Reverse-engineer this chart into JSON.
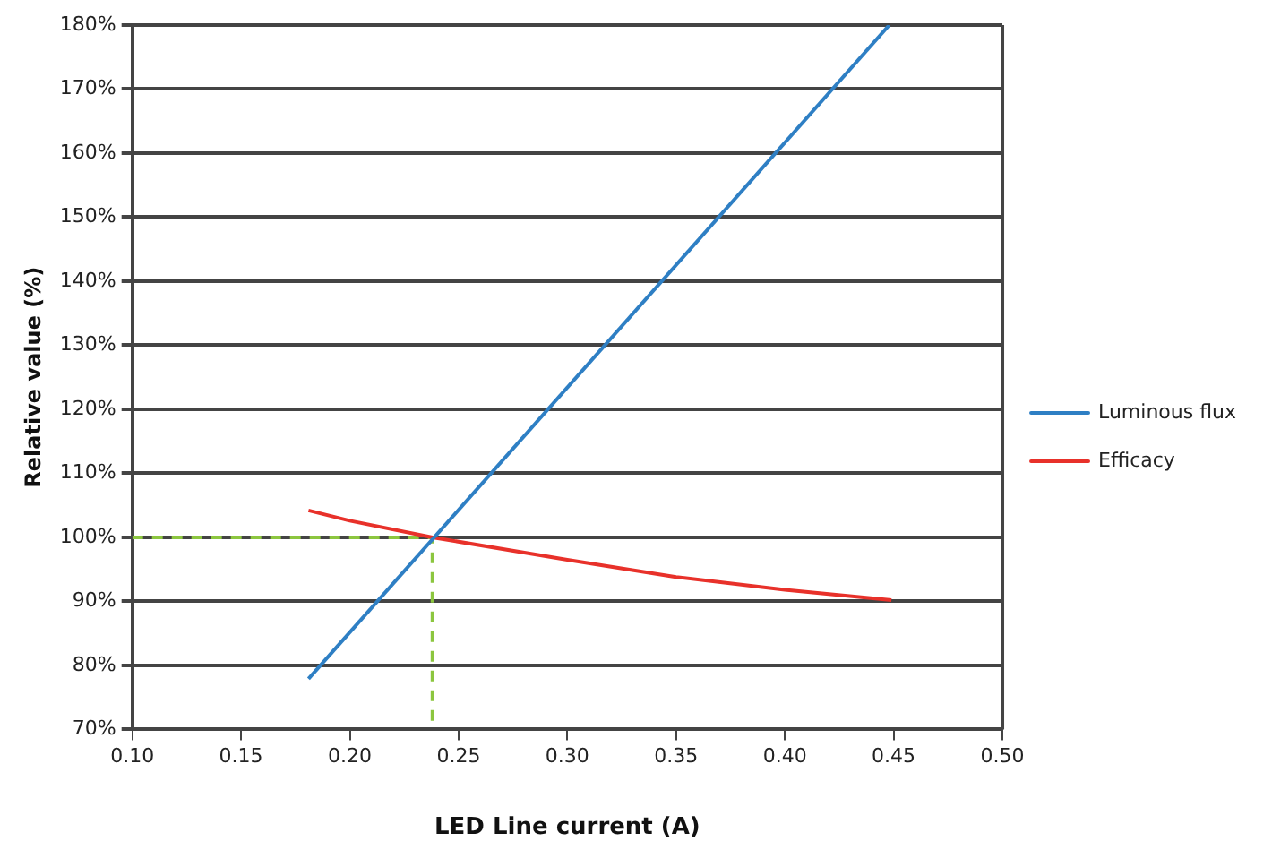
{
  "chart_data": {
    "type": "line",
    "xlabel": "LED Line current (A)",
    "ylabel": "Relative value (%)",
    "xlim": [
      0.1,
      0.5
    ],
    "xticks": [
      {
        "value": 0.1,
        "label": "0.10"
      },
      {
        "value": 0.15,
        "label": "0.15"
      },
      {
        "value": 0.2,
        "label": "0.20"
      },
      {
        "value": 0.25,
        "label": "0.25"
      },
      {
        "value": 0.3,
        "label": "0.30"
      },
      {
        "value": 0.35,
        "label": "0.35"
      },
      {
        "value": 0.4,
        "label": "0.40"
      },
      {
        "value": 0.45,
        "label": "0.45"
      },
      {
        "value": 0.5,
        "label": "0.50"
      }
    ],
    "ylim": [
      70,
      180
    ],
    "yticks": [
      {
        "value": 70,
        "label": "70%"
      },
      {
        "value": 80,
        "label": "80%"
      },
      {
        "value": 90,
        "label": "90%"
      },
      {
        "value": 100,
        "label": "100%"
      },
      {
        "value": 110,
        "label": "110%"
      },
      {
        "value": 120,
        "label": "120%"
      },
      {
        "value": 130,
        "label": "130%"
      },
      {
        "value": 140,
        "label": "140%"
      },
      {
        "value": 150,
        "label": "150%"
      },
      {
        "value": 160,
        "label": "160%"
      },
      {
        "value": 170,
        "label": "170%"
      },
      {
        "value": 180,
        "label": "180%"
      }
    ],
    "series": [
      {
        "name": "Luminous flux",
        "color": "#2e7fc4",
        "x": [
          0.181,
          0.448
        ],
        "values": [
          77.9,
          180
        ]
      },
      {
        "name": "Efficacy",
        "color": "#e8312a",
        "x": [
          0.181,
          0.2,
          0.238,
          0.3,
          0.35,
          0.4,
          0.449
        ],
        "values": [
          104.2,
          102.6,
          100,
          96.5,
          93.8,
          91.8,
          90.2
        ]
      },
      {
        "color": "#8cc63f",
        "line_style": "dashed",
        "x": [
          0.1,
          0.238,
          0.238
        ],
        "values": [
          100,
          100,
          70
        ]
      }
    ],
    "grid": "y",
    "legend": "right",
    "marker": "none"
  }
}
